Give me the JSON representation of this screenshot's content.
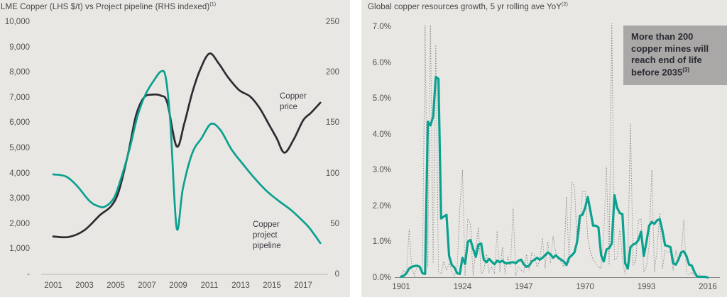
{
  "page": {
    "panel_background": "#e9e7e4",
    "text_color": "#54524e",
    "accent_teal": "#0aa18f",
    "line_dark": "#2d2b30",
    "dotted_gray": "#7d7c7a"
  },
  "chart_data": [
    {
      "type": "line",
      "title": "LME Copper (LHS $/t) vs Project pipeline (RHS indexed)",
      "title_sup": "(1)",
      "grid": false,
      "x_range": [
        2001,
        2018.2
      ],
      "x_ticks": [
        {
          "label": "2001",
          "year": 2001
        },
        {
          "label": "2003",
          "year": 2003
        },
        {
          "label": "2005",
          "year": 2005
        },
        {
          "label": "2007",
          "year": 2007
        },
        {
          "label": "2009",
          "year": 2009
        },
        {
          "label": "2011",
          "year": 2011
        },
        {
          "label": "2013",
          "year": 2013
        },
        {
          "label": "2015",
          "year": 2015
        },
        {
          "label": "2017",
          "year": 2017
        }
      ],
      "y_left_range": [
        0,
        10000
      ],
      "y_left_ticks": [
        {
          "label": "10,000",
          "value": 10000
        },
        {
          "label": "9,000",
          "value": 9000
        },
        {
          "label": "8,000",
          "value": 8000
        },
        {
          "label": "7,000",
          "value": 7000
        },
        {
          "label": "6,000",
          "value": 6000
        },
        {
          "label": "5,000",
          "value": 5000
        },
        {
          "label": "4,000",
          "value": 4000
        },
        {
          "label": "3,000",
          "value": 3000
        },
        {
          "label": "2,000",
          "value": 2000
        },
        {
          "label": "1,000",
          "value": 1000
        },
        {
          "label": "-",
          "value": 0
        }
      ],
      "y_right_range": [
        0,
        250
      ],
      "y_right_ticks": [
        {
          "label": "250",
          "value": 250
        },
        {
          "label": "200",
          "value": 200
        },
        {
          "label": "150",
          "value": 150
        },
        {
          "label": "100",
          "value": 100
        },
        {
          "label": "50",
          "value": 50
        },
        {
          "label": "0",
          "value": 0
        }
      ],
      "series": [
        {
          "id": "copper-price",
          "axis": "left",
          "color": "#2d2b30",
          "label": "Copper\nprice",
          "points": [
            [
              2001,
              1500
            ],
            [
              2002,
              1480
            ],
            [
              2003,
              1750
            ],
            [
              2004,
              2350
            ],
            [
              2004.7,
              2700
            ],
            [
              2005.2,
              3300
            ],
            [
              2005.8,
              4800
            ],
            [
              2006.3,
              6300
            ],
            [
              2006.8,
              7000
            ],
            [
              2007.3,
              7120
            ],
            [
              2007.9,
              7080
            ],
            [
              2008.3,
              6800
            ],
            [
              2008.9,
              5070
            ],
            [
              2009.4,
              6000
            ],
            [
              2009.9,
              7200
            ],
            [
              2010.4,
              8100
            ],
            [
              2011,
              8750
            ],
            [
              2011.6,
              8350
            ],
            [
              2012.2,
              7800
            ],
            [
              2012.9,
              7300
            ],
            [
              2013.6,
              7050
            ],
            [
              2014.2,
              6600
            ],
            [
              2014.8,
              5950
            ],
            [
              2015.3,
              5400
            ],
            [
              2015.8,
              4820
            ],
            [
              2016.4,
              5350
            ],
            [
              2017,
              6100
            ],
            [
              2017.5,
              6400
            ],
            [
              2018.1,
              6800
            ]
          ]
        },
        {
          "id": "copper-project-pipeline",
          "axis": "right",
          "color": "#0aa18f",
          "label": "Copper\nproject\npipeline",
          "points": [
            [
              2001,
              99
            ],
            [
              2001.8,
              97
            ],
            [
              2002.5,
              88
            ],
            [
              2003.3,
              73
            ],
            [
              2003.8,
              68
            ],
            [
              2004.3,
              67
            ],
            [
              2004.9,
              76
            ],
            [
              2005.4,
              98
            ],
            [
              2005.9,
              125
            ],
            [
              2006.4,
              157
            ],
            [
              2006.9,
              178
            ],
            [
              2007.4,
              191
            ],
            [
              2007.9,
              201
            ],
            [
              2008.2,
              195
            ],
            [
              2008.5,
              150
            ],
            [
              2008.9,
              46
            ],
            [
              2009.3,
              85
            ],
            [
              2009.9,
              120
            ],
            [
              2010.5,
              135
            ],
            [
              2011.1,
              149
            ],
            [
              2011.7,
              143
            ],
            [
              2012.4,
              124
            ],
            [
              2013.1,
              110
            ],
            [
              2013.9,
              95
            ],
            [
              2014.7,
              82
            ],
            [
              2015.5,
              72
            ],
            [
              2016.2,
              64
            ],
            [
              2016.9,
              54
            ],
            [
              2017.4,
              46
            ],
            [
              2018.1,
              31
            ]
          ]
        }
      ]
    },
    {
      "type": "line",
      "title": "Global copper resources growth, 5 yr rolling ave YoY",
      "title_sup": "(2)",
      "grid": false,
      "x_range": [
        1899.5,
        2017.5
      ],
      "x_ticks": [
        {
          "label": "1901",
          "year": 1901
        },
        {
          "label": "1924",
          "year": 1924
        },
        {
          "label": "1947",
          "year": 1947
        },
        {
          "label": "1970",
          "year": 1970
        },
        {
          "label": "1993",
          "year": 1993
        },
        {
          "label": "2016",
          "year": 2016
        }
      ],
      "y_range": [
        0,
        7.3
      ],
      "y_ticks": [
        {
          "label": "7.0%",
          "value": 7.0
        },
        {
          "label": "6.0%",
          "value": 6.0
        },
        {
          "label": "5.0%",
          "value": 5.0
        },
        {
          "label": "4.0%",
          "value": 4.0
        },
        {
          "label": "3.0%",
          "value": 3.0
        },
        {
          "label": "2.0%",
          "value": 2.0
        },
        {
          "label": "1.0%",
          "value": 1.0
        },
        {
          "label": "0.0%",
          "value": 0.0
        }
      ],
      "series": [
        {
          "id": "annual-growth-dotted",
          "style": "dotted",
          "color": "#7d7c7a",
          "start_year": 1901,
          "step": 1,
          "values": [
            0.05,
            0.2,
            0.1,
            1.35,
            0.25,
            0.05,
            0.3,
            0.25,
            0.1,
            7.05,
            0.3,
            7.05,
            0.4,
            6.5,
            0.15,
            0.1,
            0.45,
            0.2,
            0.4,
            0.15,
            0.05,
            0.3,
            1.9,
            3.0,
            0.05,
            1.65,
            1.5,
            0.05,
            0.8,
            1.4,
            0.1,
            0.2,
            0.65,
            0.15,
            0.3,
            0.1,
            1.3,
            0.15,
            0.85,
            0.1,
            0.6,
            0.3,
            1.95,
            0.05,
            0.3,
            0.2,
            0.15,
            0.65,
            0.2,
            0.7,
            0.6,
            0.3,
            0.5,
            1.1,
            0.25,
            1.0,
            0.4,
            1.15,
            0.7,
            0.5,
            0.45,
            0.3,
            2.25,
            0.4,
            2.65,
            2.55,
            0.95,
            1.3,
            2.4,
            2.4,
            1.1,
            0.7,
            0.5,
            0.4,
            0.3,
            0.25,
            1.2,
            3.1,
            0.35,
            7.1,
            0.5,
            0.55,
            1.35,
            0.5,
            0.1,
            0.45,
            4.3,
            0.35,
            0.45,
            1.6,
            1.65,
            0.15,
            0.3,
            0.9,
            3.0,
            0.16,
            0.8,
            1.8,
            0.25,
            0.75,
            0.7,
            0.72,
            0.2,
            0.75,
            0.5,
            0.6,
            1.6,
            0.1,
            0.08,
            0.15,
            0.05,
            0.02,
            0.1,
            0.02,
            0.05,
            0.0
          ]
        },
        {
          "id": "rolling-5yr-average",
          "style": "solid",
          "color": "#0aa18f",
          "start_year": 1901,
          "step": 1,
          "values": [
            0.02,
            0.05,
            0.12,
            0.25,
            0.3,
            0.32,
            0.33,
            0.3,
            0.12,
            0.1,
            4.35,
            4.25,
            4.5,
            5.6,
            5.55,
            1.65,
            1.7,
            1.75,
            0.6,
            0.35,
            0.28,
            0.12,
            0.1,
            0.55,
            0.38,
            1.0,
            1.05,
            0.8,
            0.58,
            0.92,
            0.95,
            0.5,
            0.43,
            0.52,
            0.44,
            0.37,
            0.47,
            0.43,
            0.47,
            0.4,
            0.4,
            0.42,
            0.43,
            0.4,
            0.47,
            0.5,
            0.37,
            0.3,
            0.33,
            0.45,
            0.5,
            0.55,
            0.5,
            0.55,
            0.62,
            0.7,
            0.65,
            0.55,
            0.62,
            0.55,
            0.5,
            0.45,
            0.35,
            0.55,
            0.62,
            0.7,
            1.0,
            1.72,
            1.75,
            1.95,
            2.25,
            1.85,
            1.45,
            1.45,
            1.4,
            0.62,
            0.45,
            0.78,
            0.82,
            0.95,
            2.3,
            1.95,
            1.8,
            1.77,
            0.4,
            0.25,
            0.85,
            0.92,
            0.95,
            1.05,
            1.28,
            0.6,
            1.0,
            1.45,
            1.55,
            1.5,
            1.6,
            1.63,
            1.3,
            0.9,
            0.88,
            0.85,
            0.4,
            0.36,
            0.5,
            0.7,
            0.73,
            0.6,
            0.36,
            0.33,
            0.15,
            0.03,
            0.02,
            0.02,
            0.02,
            0.0
          ]
        }
      ],
      "callout": {
        "text": "More than 200 copper mines will reach end of life before 2035",
        "sup": "(3)",
        "background": "#a9a8a6",
        "text_color": "#2b2a33"
      }
    }
  ]
}
